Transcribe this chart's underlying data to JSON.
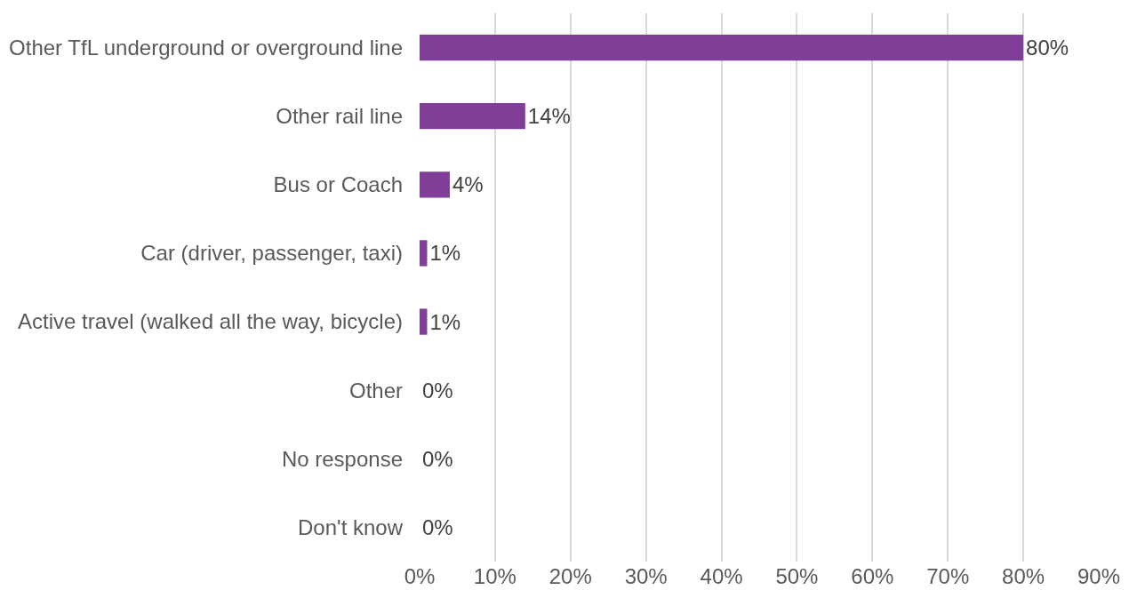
{
  "chart_data": {
    "type": "bar",
    "orientation": "horizontal",
    "categories": [
      "Other TfL underground or overground line",
      "Other rail line",
      "Bus or Coach",
      "Car (driver, passenger, taxi)",
      "Active travel (walked all the way, bicycle)",
      "Other",
      "No response",
      "Don't know"
    ],
    "values": [
      80,
      14,
      4,
      1,
      1,
      0,
      0,
      0
    ],
    "value_labels": [
      "80%",
      "14%",
      "4%",
      "1%",
      "1%",
      "0%",
      "0%",
      "0%"
    ],
    "color": "#7f3f98",
    "xlim": [
      0,
      90
    ],
    "xticks": [
      {
        "value": 0,
        "label": "0%"
      },
      {
        "value": 10,
        "label": "10%"
      },
      {
        "value": 20,
        "label": "20%"
      },
      {
        "value": 30,
        "label": "30%"
      },
      {
        "value": 40,
        "label": "40%"
      },
      {
        "value": 50,
        "label": "50%"
      },
      {
        "value": 60,
        "label": "60%"
      },
      {
        "value": 70,
        "label": "70%"
      },
      {
        "value": 80,
        "label": "80%"
      },
      {
        "value": 90,
        "label": "90%"
      }
    ],
    "grid": "x"
  }
}
